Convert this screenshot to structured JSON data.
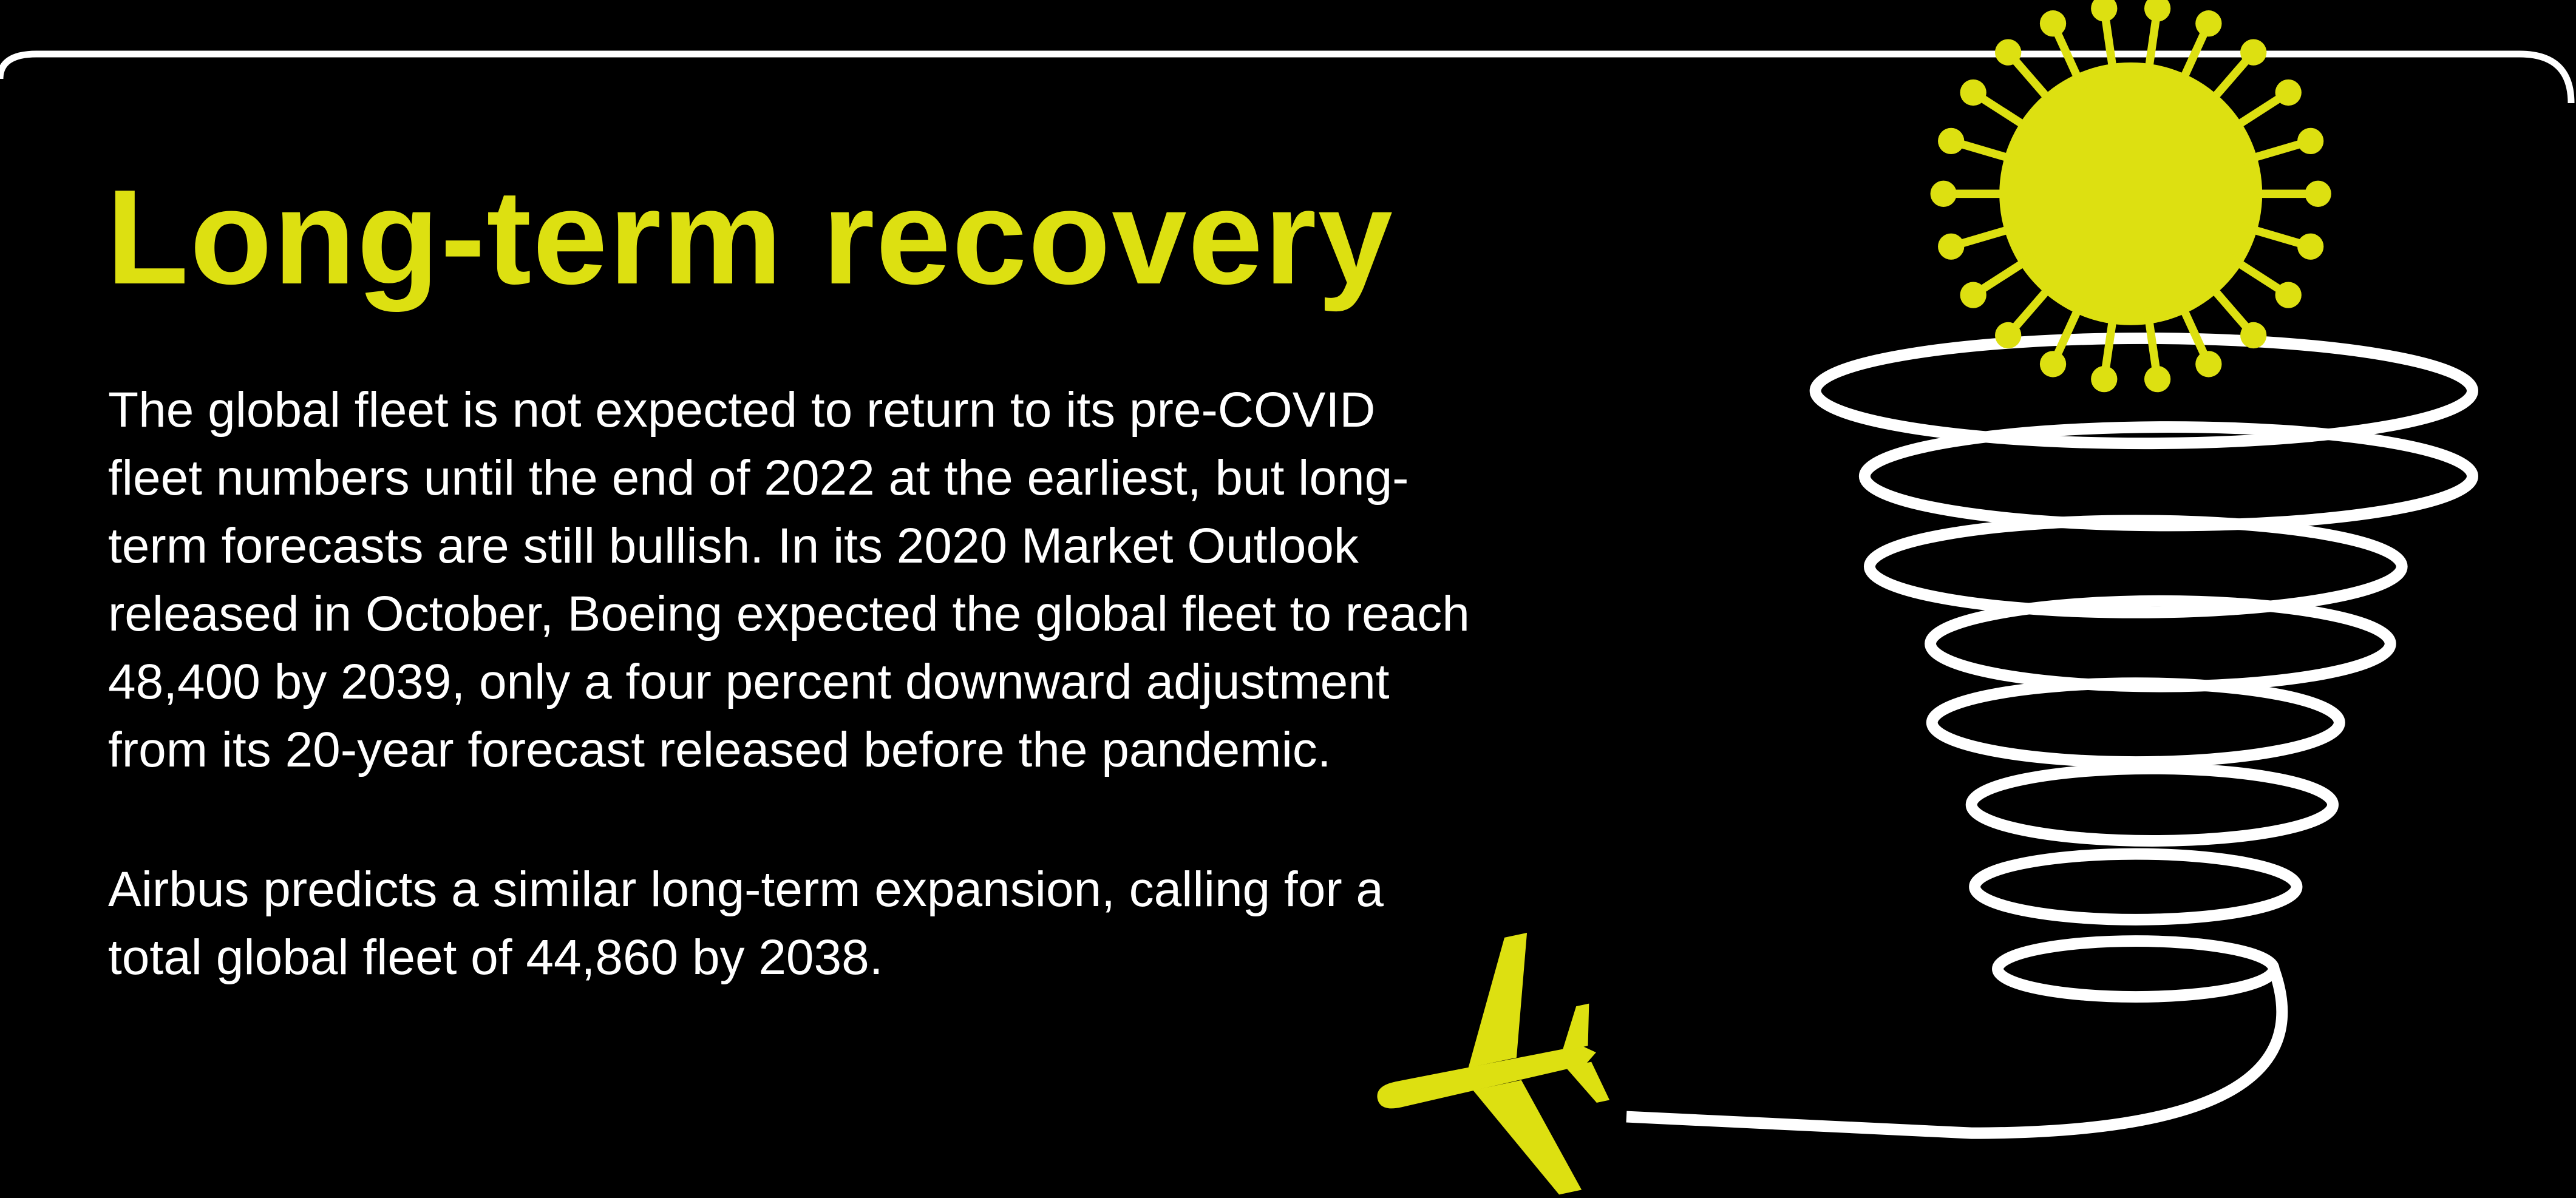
{
  "title": "Long-term recovery",
  "paragraphs": [
    {
      "lines": [
        "The global fleet is not expected to return to its pre-COVID",
        "fleet numbers until the end of 2022 at the earliest, but long-",
        "term forecasts are still bullish. In its 2020 Market Outlook",
        "released in October, Boeing expected the global fleet to reach",
        "48,400 by 2039, only a four percent downward adjustment",
        "from its 20-year forecast released before the pandemic."
      ]
    },
    {
      "lines": [
        "Airbus predicts a similar long-term expansion, calling for a",
        "total global fleet of 44,860 by 2038."
      ]
    }
  ]
}
